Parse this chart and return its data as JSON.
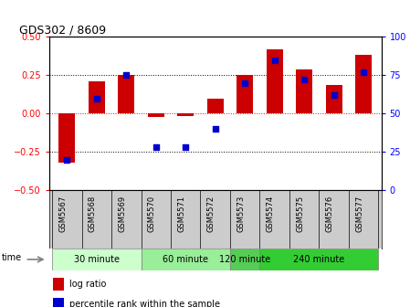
{
  "title": "GDS302 / 8609",
  "samples": [
    "GSM5567",
    "GSM5568",
    "GSM5569",
    "GSM5570",
    "GSM5571",
    "GSM5572",
    "GSM5573",
    "GSM5574",
    "GSM5575",
    "GSM5576",
    "GSM5577"
  ],
  "log_ratio": [
    -0.32,
    0.21,
    0.25,
    -0.02,
    -0.015,
    0.1,
    0.25,
    0.42,
    0.29,
    0.185,
    0.38
  ],
  "percentile": [
    20,
    60,
    75,
    28,
    28,
    40,
    70,
    85,
    72,
    62,
    77
  ],
  "bar_color": "#cc0000",
  "dot_color": "#0000cc",
  "ylim_left": [
    -0.5,
    0.5
  ],
  "ylim_right": [
    0,
    100
  ],
  "yticks_left": [
    -0.5,
    -0.25,
    0,
    0.25,
    0.5
  ],
  "yticks_right": [
    0,
    25,
    50,
    75,
    100
  ],
  "hlines_black": [
    -0.25,
    0.25
  ],
  "hline_red": 0,
  "groups": [
    {
      "label": "30 minute",
      "start": 0,
      "end": 2,
      "color": "#ccffcc"
    },
    {
      "label": "60 minute",
      "start": 3,
      "end": 5,
      "color": "#99ee99"
    },
    {
      "label": "120 minute",
      "start": 6,
      "end": 6,
      "color": "#55cc55"
    },
    {
      "label": "240 minute",
      "start": 7,
      "end": 10,
      "color": "#33cc33"
    }
  ],
  "group_colors": [
    "#ccffcc",
    "#99ee99",
    "#55cc55",
    "#33cc33"
  ],
  "time_label": "time",
  "legend_log": "log ratio",
  "legend_pct": "percentile rank within the sample",
  "sample_bg": "#cccccc"
}
